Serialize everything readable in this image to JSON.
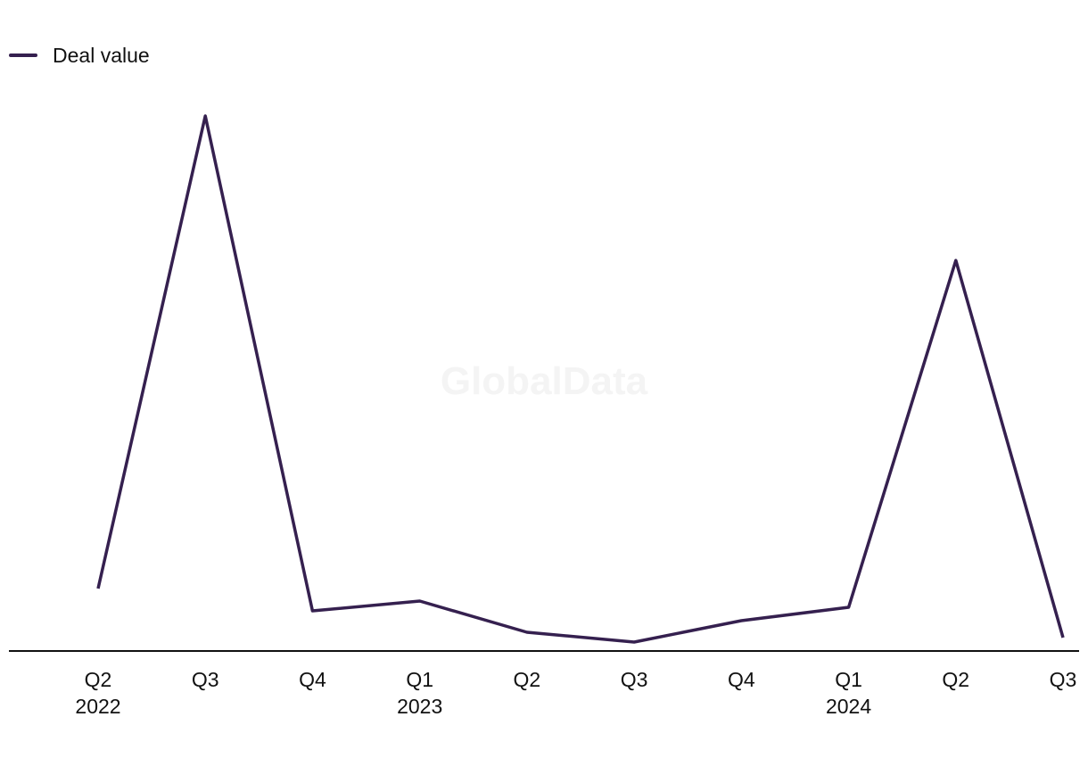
{
  "legend": {
    "label": "Deal value"
  },
  "watermark": "GlobalData",
  "colors": {
    "series": "#35204f",
    "axis": "#111111"
  },
  "chart_data": {
    "type": "line",
    "categories": [
      "Q2 2022",
      "Q3 2022",
      "Q4 2022",
      "Q1 2023",
      "Q2 2023",
      "Q3 2023",
      "Q4 2023",
      "Q1 2024",
      "Q2 2024",
      "Q3 2024"
    ],
    "tick_labels": [
      {
        "quarter": "Q2",
        "year": "2022"
      },
      {
        "quarter": "Q3",
        "year": ""
      },
      {
        "quarter": "Q4",
        "year": ""
      },
      {
        "quarter": "Q1",
        "year": "2023"
      },
      {
        "quarter": "Q2",
        "year": ""
      },
      {
        "quarter": "Q3",
        "year": ""
      },
      {
        "quarter": "Q4",
        "year": ""
      },
      {
        "quarter": "Q1",
        "year": "2024"
      },
      {
        "quarter": "Q2",
        "year": ""
      },
      {
        "quarter": "Q3",
        "year": ""
      }
    ],
    "series": [
      {
        "name": "Deal value",
        "values": [
          70,
          600,
          45,
          56,
          21,
          10,
          34,
          49,
          438,
          15
        ]
      }
    ],
    "ylim": [
      0,
      620
    ],
    "grid": false,
    "legend_position": "top-left",
    "xlabel": "",
    "ylabel": ""
  }
}
